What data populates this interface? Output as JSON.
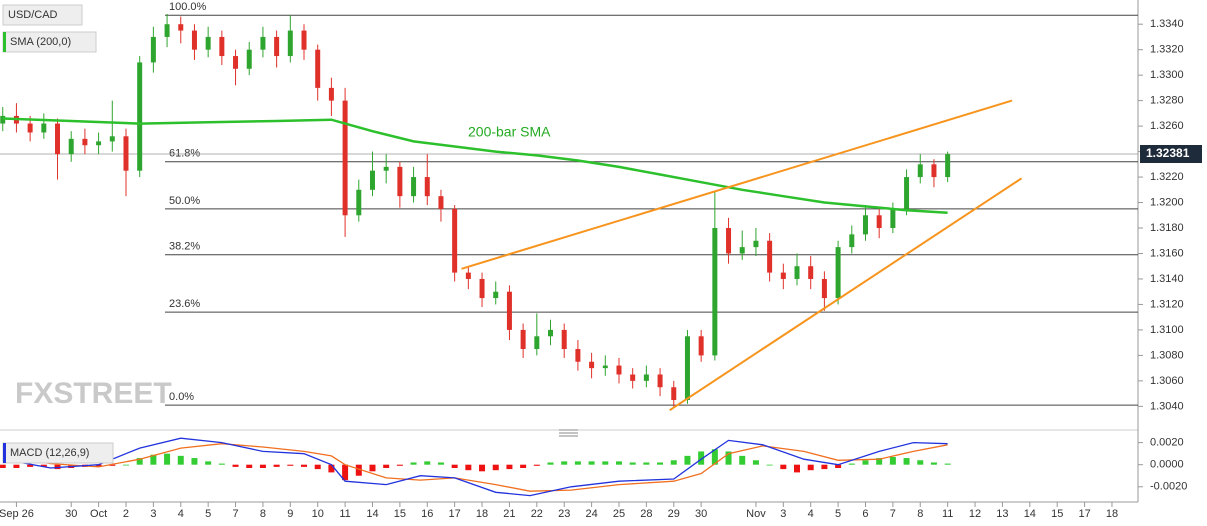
{
  "chart_data": [
    {
      "type": "candlestick",
      "title": "USD/CAD",
      "indicator_label": "SMA (200,0)",
      "watermark": "FXSTREET",
      "up_color": "#2ea52e",
      "down_color": "#e0302a",
      "open": [
        1.3262,
        1.3268,
        1.3262,
        1.3255,
        1.3262,
        1.3238,
        1.325,
        1.3245,
        1.3248,
        1.3252,
        1.3225,
        1.331,
        1.333,
        1.334,
        1.3335,
        1.332,
        1.333,
        1.3315,
        1.3305,
        1.332,
        1.333,
        1.3315,
        1.3335,
        1.332,
        1.329,
        1.328,
        1.319,
        1.321,
        1.3225,
        1.3228,
        1.3205,
        1.322,
        1.3205,
        1.3195,
        1.3145,
        1.314,
        1.3125,
        1.313,
        1.31,
        1.3085,
        1.3095,
        1.31,
        1.3085,
        1.3075,
        1.307,
        1.3072,
        1.3065,
        1.306,
        1.3065,
        1.3055,
        1.3045,
        1.3095,
        1.308,
        1.318,
        1.316,
        1.3165,
        1.317,
        1.3145,
        1.314,
        1.315,
        1.314,
        1.3125,
        1.3165,
        1.3175,
        1.319,
        1.318,
        1.3195,
        1.322,
        1.323,
        1.322
      ],
      "high": [
        1.3275,
        1.3278,
        1.3268,
        1.327,
        1.3266,
        1.3256,
        1.3258,
        1.3255,
        1.328,
        1.3258,
        1.3315,
        1.3338,
        1.3348,
        1.3346,
        1.334,
        1.3338,
        1.3335,
        1.332,
        1.3326,
        1.3338,
        1.3335,
        1.3347,
        1.334,
        1.3324,
        1.3298,
        1.329,
        1.3218,
        1.324,
        1.3238,
        1.3232,
        1.3228,
        1.3238,
        1.321,
        1.3198,
        1.315,
        1.3145,
        1.3138,
        1.3135,
        1.3105,
        1.3113,
        1.3108,
        1.3105,
        1.3092,
        1.3082,
        1.308,
        1.3078,
        1.307,
        1.3072,
        1.307,
        1.306,
        1.31,
        1.31,
        1.3208,
        1.3188,
        1.3178,
        1.318,
        1.3176,
        1.3152,
        1.316,
        1.3158,
        1.3146,
        1.317,
        1.3182,
        1.3198,
        1.3195,
        1.32,
        1.3226,
        1.3238,
        1.3234,
        1.324
      ],
      "low": [
        1.3256,
        1.3255,
        1.3248,
        1.325,
        1.3218,
        1.3232,
        1.3238,
        1.3238,
        1.324,
        1.3205,
        1.322,
        1.3302,
        1.3322,
        1.3325,
        1.3312,
        1.3314,
        1.3308,
        1.3292,
        1.33,
        1.3314,
        1.3306,
        1.331,
        1.3312,
        1.328,
        1.3268,
        1.3173,
        1.3185,
        1.3205,
        1.3215,
        1.3196,
        1.32,
        1.3198,
        1.3185,
        1.3138,
        1.3132,
        1.3118,
        1.312,
        1.3092,
        1.3078,
        1.308,
        1.3088,
        1.3078,
        1.3068,
        1.3062,
        1.3064,
        1.3058,
        1.3054,
        1.3055,
        1.3048,
        1.304,
        1.3042,
        1.3075,
        1.3076,
        1.3152,
        1.3155,
        1.3158,
        1.3138,
        1.3132,
        1.3135,
        1.3132,
        1.3115,
        1.312,
        1.316,
        1.317,
        1.3172,
        1.3176,
        1.319,
        1.3215,
        1.3212,
        1.3216
      ],
      "close": [
        1.3268,
        1.3262,
        1.3255,
        1.3262,
        1.3238,
        1.325,
        1.3245,
        1.3248,
        1.3252,
        1.3225,
        1.331,
        1.333,
        1.334,
        1.3335,
        1.332,
        1.333,
        1.3315,
        1.3305,
        1.332,
        1.333,
        1.3315,
        1.3335,
        1.332,
        1.329,
        1.328,
        1.319,
        1.321,
        1.3225,
        1.3228,
        1.3205,
        1.322,
        1.3205,
        1.3195,
        1.3145,
        1.314,
        1.3125,
        1.313,
        1.31,
        1.3085,
        1.3095,
        1.31,
        1.3085,
        1.3075,
        1.307,
        1.3072,
        1.3065,
        1.306,
        1.3065,
        1.3055,
        1.3045,
        1.3095,
        1.308,
        1.318,
        1.316,
        1.3165,
        1.317,
        1.3145,
        1.314,
        1.315,
        1.314,
        1.3125,
        1.3165,
        1.3175,
        1.319,
        1.318,
        1.3195,
        1.322,
        1.323,
        1.322,
        1.3238
      ],
      "xlim": [
        -0.2,
        82.9
      ],
      "ylim": [
        1.3023,
        1.3359
      ],
      "yticks": [
        {
          "value": 1.304,
          "label": "1.3040"
        },
        {
          "value": 1.306,
          "label": "1.3060"
        },
        {
          "value": 1.308,
          "label": "1.3080"
        },
        {
          "value": 1.31,
          "label": "1.3100"
        },
        {
          "value": 1.312,
          "label": "1.3120"
        },
        {
          "value": 1.314,
          "label": "1.3140"
        },
        {
          "value": 1.316,
          "label": "1.3160"
        },
        {
          "value": 1.318,
          "label": "1.3180"
        },
        {
          "value": 1.32,
          "label": "1.3200"
        },
        {
          "value": 1.322,
          "label": "1.3220"
        },
        {
          "value": 1.324,
          "label": "1.3240"
        },
        {
          "value": 1.326,
          "label": "1.3260"
        },
        {
          "value": 1.328,
          "label": "1.3280"
        },
        {
          "value": 1.33,
          "label": "1.3300"
        },
        {
          "value": 1.332,
          "label": "1.3320"
        },
        {
          "value": 1.334,
          "label": "1.3340"
        }
      ],
      "xticks": [
        {
          "value": 1,
          "label": "Sep 26"
        },
        {
          "value": 5,
          "label": "30"
        },
        {
          "value": 7,
          "label": "Oct"
        },
        {
          "value": 9,
          "label": "2"
        },
        {
          "value": 11,
          "label": "3"
        },
        {
          "value": 13,
          "label": "4"
        },
        {
          "value": 15,
          "label": "5"
        },
        {
          "value": 17,
          "label": "7"
        },
        {
          "value": 19,
          "label": "8"
        },
        {
          "value": 21,
          "label": "9"
        },
        {
          "value": 23,
          "label": "10"
        },
        {
          "value": 25,
          "label": "11"
        },
        {
          "value": 27,
          "label": "14"
        },
        {
          "value": 29,
          "label": "15"
        },
        {
          "value": 31,
          "label": "16"
        },
        {
          "value": 33,
          "label": "17"
        },
        {
          "value": 35,
          "label": "18"
        },
        {
          "value": 37,
          "label": "21"
        },
        {
          "value": 39,
          "label": "22"
        },
        {
          "value": 41,
          "label": "23"
        },
        {
          "value": 43,
          "label": "24"
        },
        {
          "value": 45,
          "label": "25"
        },
        {
          "value": 47,
          "label": "28"
        },
        {
          "value": 49,
          "label": "29"
        },
        {
          "value": 51,
          "label": "30"
        },
        {
          "value": 55,
          "label": "Nov"
        },
        {
          "value": 57,
          "label": "3"
        },
        {
          "value": 59,
          "label": "4"
        },
        {
          "value": 61,
          "label": "5"
        },
        {
          "value": 63,
          "label": "6"
        },
        {
          "value": 65,
          "label": "7"
        },
        {
          "value": 67,
          "label": "8"
        },
        {
          "value": 69,
          "label": "11"
        },
        {
          "value": 71,
          "label": "12"
        },
        {
          "value": 73,
          "label": "13"
        },
        {
          "value": 75,
          "label": "14"
        },
        {
          "value": 77,
          "label": "15"
        },
        {
          "value": 79,
          "label": "17"
        },
        {
          "value": 81,
          "label": "18"
        }
      ],
      "last_price": 1.32381,
      "sma": {
        "name": "200-bar SMA",
        "color": "#2cc02c",
        "x": [
          0,
          5,
          10,
          15,
          20,
          24,
          27,
          30,
          33,
          36,
          39,
          42,
          45,
          48,
          51,
          54,
          57,
          60,
          63,
          66,
          69
        ],
        "values": [
          1.3266,
          1.3264,
          1.3262,
          1.3263,
          1.3264,
          1.3265,
          1.3256,
          1.3248,
          1.3244,
          1.324,
          1.3237,
          1.3233,
          1.3228,
          1.3222,
          1.3216,
          1.321,
          1.3205,
          1.32,
          1.3197,
          1.3194,
          1.3192
        ]
      },
      "trendline_color": "#f7941d",
      "trendlines": [
        {
          "x": [
            33.5,
            73.7
          ],
          "values": [
            1.3148,
            1.328
          ]
        },
        {
          "x": [
            48.7,
            74.4
          ],
          "values": [
            1.3037,
            1.3219
          ]
        }
      ],
      "fib_start": 11.85,
      "fib_levels": [
        {
          "label": "100.0%",
          "price": 1.3347
        },
        {
          "label": "61.8%",
          "price": 1.3232
        },
        {
          "label": "50.0%",
          "price": 1.3195
        },
        {
          "label": "38.2%",
          "price": 1.3159
        },
        {
          "label": "23.6%",
          "price": 1.3114
        },
        {
          "label": "0.0%",
          "price": 1.3041
        }
      ]
    },
    {
      "type": "macd",
      "title": "MACD (12,26,9)",
      "xlim": [
        -0.2,
        82.9
      ],
      "ylim": [
        -0.0032,
        0.0026
      ],
      "yticks": [
        {
          "value": 0.002,
          "label": "0.0020"
        },
        {
          "value": 0,
          "label": "0.0000"
        },
        {
          "value": -0.002,
          "label": "-0.0020"
        }
      ],
      "macd_color": "#2233dd",
      "signal_color": "#f07020",
      "pos_color": "#33cc33",
      "neg_color": "#ee1111",
      "x": [
        0,
        3.5,
        7,
        10,
        13,
        16,
        19,
        22,
        24,
        25,
        28,
        30.5,
        33,
        36,
        38.5,
        41.5,
        45,
        49,
        51,
        53,
        55.5,
        58.5,
        61,
        64,
        66.5,
        69
      ],
      "macd": [
        0.0005,
        -0.0003,
        0,
        0.0015,
        0.0024,
        0.002,
        0.0012,
        0.001,
        0,
        -0.0015,
        -0.0018,
        -0.001,
        -0.0012,
        -0.0025,
        -0.0028,
        -0.002,
        -0.0015,
        -0.0013,
        0.0005,
        0.0022,
        0.0018,
        0.0005,
        0,
        0.0012,
        0.002,
        0.0019
      ],
      "signal": [
        0.0008,
        0.0001,
        -0.0002,
        0.0005,
        0.0015,
        0.0019,
        0.0016,
        0.0012,
        0.0008,
        0,
        -0.0012,
        -0.0014,
        -0.0012,
        -0.0018,
        -0.0024,
        -0.0023,
        -0.0018,
        -0.0015,
        -0.0008,
        0.001,
        0.0017,
        0.0012,
        0.0004,
        0.0005,
        0.0012,
        0.0018
      ],
      "histogram": [
        -0.0003,
        -0.0003,
        -0.0002,
        -0.0002,
        -0.0004,
        -0.0003,
        -0.0002,
        -0.0002,
        -0.0001,
        0,
        0.0006,
        0.0009,
        0.001,
        0.0008,
        0.0006,
        0.0003,
        0.0001,
        -0.0002,
        -0.0003,
        -0.0003,
        -0.0002,
        -0.0001,
        -0.0002,
        -0.0004,
        -0.0007,
        -0.0014,
        -0.001,
        -0.0006,
        -0.0003,
        -0.0001,
        0.0002,
        0.0003,
        0.0002,
        -0.0003,
        -0.0005,
        -0.0006,
        -0.0005,
        -0.0004,
        -0.0003,
        -0.0001,
        0.0002,
        0.0003,
        0.0003,
        0.0003,
        0.0003,
        0.0003,
        0.0002,
        0.0002,
        0.0002,
        0.0004,
        0.0008,
        0.0012,
        0.0014,
        0.0012,
        0.0008,
        0.0004,
        0,
        -0.0004,
        -0.0007,
        -0.0005,
        -0.0004,
        -0.0003,
        0.0001,
        0.0004,
        0.0006,
        0.0007,
        0.0006,
        0.0004,
        0.0002,
        0.0001
      ]
    }
  ]
}
